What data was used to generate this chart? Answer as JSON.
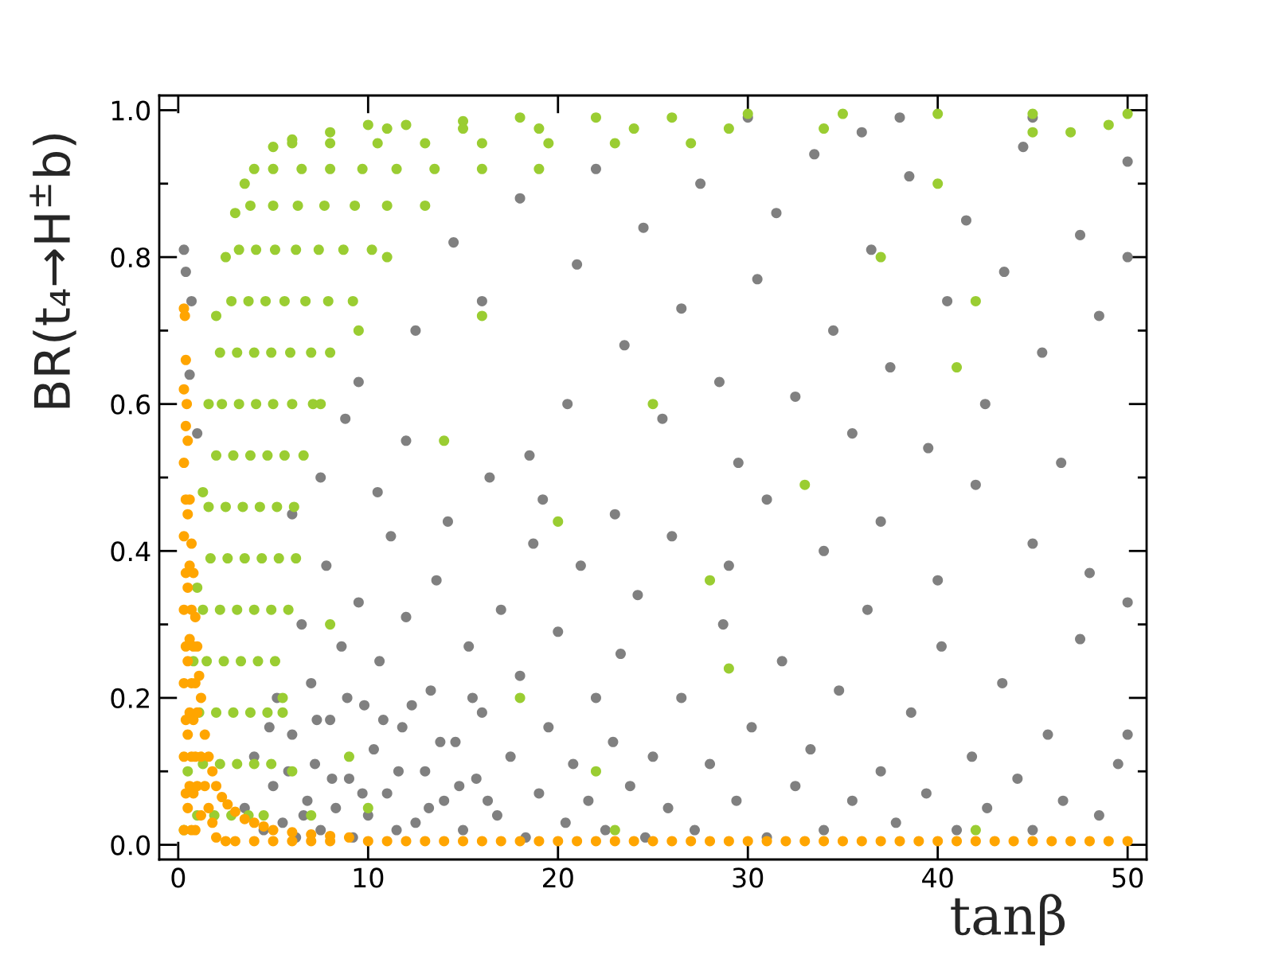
{
  "chart_data": {
    "type": "scatter",
    "xlabel": "tanβ",
    "ylabel": "BR(t₄→H$^{±}$b)",
    "xlim": [
      -1,
      51
    ],
    "ylim": [
      -0.02,
      1.02
    ],
    "xticks": [
      0,
      10,
      20,
      30,
      40,
      50
    ],
    "yticks": [
      {
        "value": 0,
        "label": "0.0"
      },
      {
        "value": 0.1,
        "label": null
      },
      {
        "value": 0.2,
        "label": "0.2"
      },
      {
        "value": 0.3,
        "label": null
      },
      {
        "value": 0.4,
        "label": "0.4"
      },
      {
        "value": 0.5,
        "label": null
      },
      {
        "value": 0.6,
        "label": "0.6"
      },
      {
        "value": 0.7,
        "label": null
      },
      {
        "value": 0.8,
        "label": "0.8"
      },
      {
        "value": 0.9,
        "label": null
      },
      {
        "value": 1,
        "label": "1.0"
      }
    ],
    "marker": "circle",
    "series": [
      {
        "color": "#808080",
        "x": [
          3.5,
          4.0,
          4.5,
          5.0,
          5.2,
          5.5,
          6.0,
          6.2,
          6.5,
          6.8,
          7.0,
          7.2,
          7.5,
          7.8,
          8.0,
          8.3,
          8.6,
          9.0,
          9.2,
          9.5,
          9.8,
          10.0,
          10.3,
          10.6,
          11.0,
          11.2,
          11.5,
          11.8,
          12.0,
          6.0,
          7.5,
          8.8,
          10.5,
          9.5,
          12.0,
          12.5,
          13.0,
          13.3,
          13.6,
          14.0,
          14.2,
          14.6,
          15.0,
          15.3,
          15.7,
          16.0,
          16.4,
          16.8,
          17.0,
          17.5,
          18.0,
          18.3,
          18.7,
          19.0,
          19.5,
          20.0,
          20.4,
          20.8,
          21.2,
          21.6,
          22.0,
          22.5,
          22.9,
          23.3,
          23.8,
          24.2,
          24.6,
          25.0,
          19.2,
          23.0,
          25.8,
          26.5,
          27.2,
          28.0,
          28.7,
          29.4,
          30.2,
          31.0,
          31.8,
          32.5,
          33.3,
          34.0,
          34.8,
          35.5,
          36.3,
          37.0,
          37.8,
          38.6,
          39.4,
          40.2,
          41.0,
          41.8,
          42.6,
          43.4,
          44.2,
          45.0,
          45.8,
          46.6,
          47.5,
          48.5,
          49.5,
          12.5,
          14.5,
          16.0,
          18.0,
          18.5,
          20.5,
          21.0,
          22.0,
          23.5,
          24.5,
          25.5,
          26.5,
          27.5,
          28.5,
          29.5,
          30.5,
          31.5,
          32.5,
          33.5,
          34.5,
          35.5,
          36.5,
          37.5,
          38.5,
          39.5,
          40.5,
          41.5,
          42.5,
          43.5,
          44.5,
          45.5,
          46.5,
          47.5,
          48.5,
          26.0,
          29.0,
          31.0,
          34.0,
          37.0,
          40.0,
          42.0,
          45.0,
          48.0,
          30.0,
          38.0,
          45.0,
          36.0,
          0.3,
          0.4,
          0.7,
          1.0,
          0.6,
          50.0,
          50.0,
          50.0,
          50.0,
          4.8,
          5.8,
          6.6,
          7.3,
          8.1,
          8.9,
          9.7,
          10.8,
          11.6,
          12.3,
          13.2,
          13.8,
          14.8,
          15.5,
          16.3
        ],
        "values": [
          0.05,
          0.12,
          0.02,
          0.08,
          0.2,
          0.03,
          0.15,
          0.01,
          0.3,
          0.06,
          0.22,
          0.11,
          0.02,
          0.38,
          0.17,
          0.05,
          0.27,
          0.09,
          0.01,
          0.33,
          0.19,
          0.04,
          0.13,
          0.25,
          0.07,
          0.42,
          0.02,
          0.16,
          0.31,
          0.45,
          0.5,
          0.58,
          0.48,
          0.63,
          0.55,
          0.03,
          0.1,
          0.21,
          0.36,
          0.06,
          0.44,
          0.14,
          0.02,
          0.27,
          0.09,
          0.18,
          0.5,
          0.04,
          0.32,
          0.12,
          0.23,
          0.01,
          0.41,
          0.07,
          0.16,
          0.29,
          0.03,
          0.11,
          0.38,
          0.06,
          0.2,
          0.02,
          0.14,
          0.26,
          0.08,
          0.34,
          0.01,
          0.12,
          0.47,
          0.45,
          0.05,
          0.2,
          0.02,
          0.11,
          0.3,
          0.06,
          0.16,
          0.01,
          0.25,
          0.08,
          0.13,
          0.02,
          0.21,
          0.06,
          0.32,
          0.1,
          0.03,
          0.18,
          0.07,
          0.27,
          0.02,
          0.12,
          0.05,
          0.22,
          0.09,
          0.02,
          0.15,
          0.06,
          0.28,
          0.04,
          0.11,
          0.7,
          0.82,
          0.74,
          0.88,
          0.53,
          0.6,
          0.79,
          0.92,
          0.68,
          0.84,
          0.58,
          0.73,
          0.9,
          0.63,
          0.52,
          0.77,
          0.86,
          0.61,
          0.94,
          0.7,
          0.56,
          0.81,
          0.65,
          0.91,
          0.54,
          0.74,
          0.85,
          0.6,
          0.78,
          0.95,
          0.67,
          0.52,
          0.83,
          0.72,
          0.42,
          0.38,
          0.47,
          0.4,
          0.44,
          0.36,
          0.49,
          0.41,
          0.37,
          0.99,
          0.99,
          0.99,
          0.97,
          0.81,
          0.78,
          0.74,
          0.56,
          0.64,
          0.93,
          0.8,
          0.33,
          0.15,
          0.16,
          0.1,
          0.04,
          0.17,
          0.09,
          0.2,
          0.07,
          0.17,
          0.1,
          0.19,
          0.05,
          0.14,
          0.08,
          0.2,
          0.06
        ]
      },
      {
        "color": "#9acd32",
        "x": [
          0.3,
          0.5,
          0.8,
          1.0,
          1.3,
          1.6,
          2.0,
          2.5,
          3.0,
          3.5,
          4.0,
          5.0,
          6.0,
          8.0,
          10.0,
          12.0,
          15.0,
          18.0,
          22.0,
          26.0,
          30.0,
          35.0,
          40.0,
          45.0,
          50.0,
          1.0,
          1.9,
          2.8,
          3.7,
          4.5,
          1.3,
          2.2,
          3.1,
          4.0,
          4.9,
          1.1,
          2.0,
          2.9,
          3.8,
          4.7,
          5.5,
          1.5,
          2.4,
          3.3,
          4.2,
          5.1,
          1.3,
          2.2,
          3.1,
          4.0,
          4.9,
          5.8,
          1.7,
          2.6,
          3.5,
          4.4,
          5.3,
          6.2,
          1.6,
          2.5,
          3.4,
          4.3,
          5.2,
          6.1,
          2.0,
          2.9,
          3.8,
          4.7,
          5.6,
          6.6,
          2.3,
          3.2,
          4.1,
          5.0,
          6.0,
          7.1,
          2.2,
          3.1,
          4.0,
          4.9,
          5.9,
          7.0,
          8.0,
          2.8,
          3.7,
          4.6,
          5.6,
          6.7,
          7.9,
          9.2,
          3.2,
          4.1,
          5.1,
          6.2,
          7.4,
          8.7,
          10.2,
          3.8,
          5.0,
          6.3,
          7.7,
          9.3,
          11.0,
          13.0,
          5.0,
          6.5,
          8.0,
          9.7,
          11.5,
          13.5,
          16.0,
          19.0,
          6.0,
          8.0,
          10.5,
          13.0,
          16.0,
          19.5,
          23.0,
          27.0,
          11.0,
          15.0,
          19.0,
          24.0,
          29.0,
          34.0,
          8.0,
          9.0,
          10.0,
          7.5,
          9.5,
          11.0,
          14.0,
          16.0,
          18.0,
          20.0,
          22.0,
          23.0,
          25.0,
          28.0,
          29.0,
          33.0,
          40.0,
          41.0,
          42.0,
          42.0,
          37.0,
          45.0,
          47.0,
          49.0,
          6.0,
          7.0,
          5.5
        ],
        "values": [
          0.02,
          0.1,
          0.25,
          0.35,
          0.48,
          0.6,
          0.72,
          0.8,
          0.86,
          0.9,
          0.92,
          0.95,
          0.96,
          0.97,
          0.98,
          0.98,
          0.985,
          0.99,
          0.99,
          0.99,
          0.995,
          0.995,
          0.995,
          0.995,
          0.995,
          0.04,
          0.04,
          0.04,
          0.04,
          0.04,
          0.11,
          0.11,
          0.11,
          0.11,
          0.11,
          0.18,
          0.18,
          0.18,
          0.18,
          0.18,
          0.18,
          0.25,
          0.25,
          0.25,
          0.25,
          0.25,
          0.32,
          0.32,
          0.32,
          0.32,
          0.32,
          0.32,
          0.39,
          0.39,
          0.39,
          0.39,
          0.39,
          0.39,
          0.46,
          0.46,
          0.46,
          0.46,
          0.46,
          0.46,
          0.53,
          0.53,
          0.53,
          0.53,
          0.53,
          0.53,
          0.6,
          0.6,
          0.6,
          0.6,
          0.6,
          0.6,
          0.67,
          0.67,
          0.67,
          0.67,
          0.67,
          0.67,
          0.67,
          0.74,
          0.74,
          0.74,
          0.74,
          0.74,
          0.74,
          0.74,
          0.81,
          0.81,
          0.81,
          0.81,
          0.81,
          0.81,
          0.81,
          0.87,
          0.87,
          0.87,
          0.87,
          0.87,
          0.87,
          0.87,
          0.92,
          0.92,
          0.92,
          0.92,
          0.92,
          0.92,
          0.92,
          0.92,
          0.955,
          0.955,
          0.955,
          0.955,
          0.955,
          0.955,
          0.955,
          0.955,
          0.975,
          0.975,
          0.975,
          0.975,
          0.975,
          0.975,
          0.3,
          0.12,
          0.05,
          0.6,
          0.7,
          0.8,
          0.55,
          0.72,
          0.2,
          0.44,
          0.1,
          0.02,
          0.6,
          0.36,
          0.24,
          0.49,
          0.9,
          0.65,
          0.74,
          0.02,
          0.8,
          0.97,
          0.97,
          0.98,
          0.1,
          0.04,
          0.2
        ]
      },
      {
        "color": "#ffa500",
        "x": [
          0.3,
          0.35,
          0.4,
          0.45,
          0.5,
          0.6,
          0.7,
          0.8,
          0.9,
          1.0,
          1.1,
          1.2,
          1.4,
          1.6,
          1.8,
          2.0,
          2.3,
          2.6,
          3.0,
          3.5,
          4.0,
          4.5,
          5.0,
          6.0,
          7.0,
          8.0,
          9.0,
          0.3,
          0.3,
          0.3,
          0.3,
          0.3,
          0.3,
          0.3,
          0.4,
          0.4,
          0.4,
          0.4,
          0.4,
          0.4,
          0.5,
          0.5,
          0.5,
          0.5,
          0.5,
          0.6,
          0.6,
          0.6,
          0.6,
          0.7,
          0.7,
          0.7,
          0.7,
          0.8,
          0.8,
          0.8,
          0.9,
          0.9,
          0.9,
          1.0,
          1.0,
          1.2,
          1.2,
          1.4,
          1.6,
          1.8,
          2.0,
          2.5,
          3.0,
          4.0,
          5.0,
          6.0,
          7.0,
          8.0,
          10,
          11,
          12,
          13,
          14,
          15,
          16,
          17,
          18,
          19,
          20,
          21,
          22,
          23,
          24,
          25,
          26,
          27,
          28,
          29,
          30,
          31,
          32,
          33,
          34,
          35,
          36,
          37,
          38,
          39,
          40,
          41,
          42,
          43,
          44,
          45,
          46,
          47,
          48,
          49,
          50
        ],
        "values": [
          0.73,
          0.72,
          0.66,
          0.6,
          0.55,
          0.47,
          0.41,
          0.37,
          0.31,
          0.27,
          0.23,
          0.2,
          0.15,
          0.12,
          0.1,
          0.08,
          0.065,
          0.055,
          0.045,
          0.035,
          0.03,
          0.025,
          0.02,
          0.017,
          0.014,
          0.012,
          0.01,
          0.62,
          0.52,
          0.42,
          0.32,
          0.22,
          0.12,
          0.02,
          0.57,
          0.47,
          0.37,
          0.27,
          0.17,
          0.07,
          0.45,
          0.35,
          0.25,
          0.15,
          0.05,
          0.38,
          0.28,
          0.18,
          0.08,
          0.32,
          0.22,
          0.12,
          0.02,
          0.27,
          0.17,
          0.07,
          0.22,
          0.12,
          0.02,
          0.18,
          0.08,
          0.12,
          0.04,
          0.08,
          0.05,
          0.03,
          0.01,
          0.005,
          0.005,
          0.005,
          0.005,
          0.005,
          0.005,
          0.005,
          0.005,
          0.005,
          0.005,
          0.005,
          0.005,
          0.005,
          0.005,
          0.005,
          0.005,
          0.005,
          0.005,
          0.005,
          0.005,
          0.005,
          0.005,
          0.005,
          0.005,
          0.005,
          0.005,
          0.005,
          0.005,
          0.005,
          0.005,
          0.005,
          0.005,
          0.005,
          0.005,
          0.005,
          0.005,
          0.005,
          0.005,
          0.005,
          0.005,
          0.005,
          0.005,
          0.005,
          0.005,
          0.005,
          0.005,
          0.005,
          0.005
        ]
      }
    ]
  }
}
